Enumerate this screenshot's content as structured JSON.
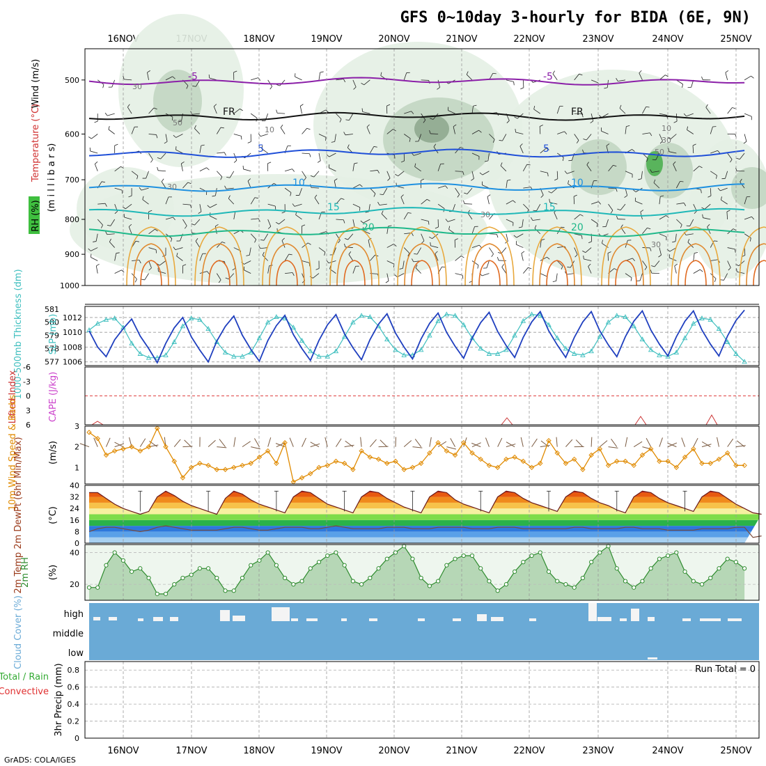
{
  "title": "GFS 0~10day 3-hourly for BIDA (6E, 9N)",
  "credit": "GrADS: COLA/IGES",
  "colors": {
    "rh_shade": "#e4f0e4",
    "rh_mid": "#c2d6c2",
    "rh_dark": "#8fa88f",
    "rh_high": "#4caf50",
    "slp": "#1f3fbf",
    "thickness": "#3fbfbf",
    "lifted_index": "#cc3333",
    "cape": "#cc44cc",
    "wind_speed": "#e08a00",
    "rh2m": "#2e8b2e",
    "cloud": "#6aaad6",
    "precip_label_rain": "#33aa33",
    "precip_label_conv": "#e03030"
  },
  "chart_data": [
    {
      "type": "line",
      "panel": "upper_air",
      "time_labels": [
        "16NOV",
        "17NOV",
        "18NOV",
        "19NOV",
        "20NOV",
        "21NOV",
        "22NOV",
        "23NOV",
        "24NOV",
        "25NOV"
      ],
      "ylabel": "(m i l l i b a r s)",
      "yticks": [
        "500",
        "600",
        "700",
        "800",
        "900",
        "1000"
      ],
      "ylim": [
        450,
        1000
      ],
      "y_scale": "log-pressure",
      "side_labels": [
        "Wind (m/s)",
        "Temperature (°C)",
        "RH (%)"
      ],
      "temperature_isotherms": [
        {
          "label": "-5",
          "color": "#8b1fa8",
          "p_start": 502,
          "amp": 4
        },
        {
          "label": "FR",
          "color": "#111111",
          "p_start": 565,
          "amp": 5
        },
        {
          "label": "5",
          "color": "#1f4fd8",
          "p_start": 640,
          "amp": 6
        },
        {
          "label": "10",
          "color": "#1e90e0",
          "p_start": 718,
          "amp": 6
        },
        {
          "label": "15",
          "color": "#1fb8b8",
          "p_start": 780,
          "amp": 7
        },
        {
          "label": "20",
          "color": "#1fb88a",
          "p_start": 835,
          "amp": 8
        }
      ],
      "isotherm_labels": [
        "-5",
        "-5",
        "FR",
        "FR",
        "5",
        "5",
        "10",
        "10",
        "15",
        "15",
        "15"
      ],
      "rh_labels": [
        "30",
        "50",
        "10",
        "30",
        "30",
        "10",
        "30",
        "50",
        "30"
      ]
    },
    {
      "type": "line",
      "panel": "slp_thickness",
      "left_axis_label": "1000-500mb Thickness (dm)",
      "right_axis_label": "SLP (mb)",
      "left_ticks": [
        "581",
        "580",
        "579",
        "578",
        "577"
      ],
      "right_ticks": [
        "1012",
        "1010",
        "1008",
        "1006"
      ],
      "slp_ylim": [
        1005.5,
        1013.5
      ],
      "series": [
        {
          "name": "SLP",
          "values": [
            1010.2,
            1008.0,
            1006.7,
            1009.0,
            1010.5,
            1011.8,
            1009.5,
            1007.8,
            1005.9,
            1008.5,
            1010.6,
            1012.0,
            1009.4,
            1007.6,
            1006.0,
            1008.8,
            1010.8,
            1012.2,
            1009.6,
            1007.7,
            1006.1,
            1008.9,
            1010.9,
            1012.3,
            1009.7,
            1007.8,
            1006.2,
            1008.9,
            1011.0,
            1012.4,
            1009.8,
            1007.9,
            1006.3,
            1009.0,
            1011.1,
            1012.5,
            1009.9,
            1008.0,
            1006.4,
            1009.1,
            1011.2,
            1012.6,
            1010.0,
            1008.1,
            1006.5,
            1009.2,
            1011.3,
            1012.7,
            1010.1,
            1008.2,
            1006.6,
            1009.3,
            1011.4,
            1012.8,
            1010.2,
            1008.3,
            1006.6,
            1009.3,
            1011.4,
            1012.8,
            1010.2,
            1008.3,
            1006.7,
            1009.4,
            1011.5,
            1012.9,
            1010.3,
            1008.4,
            1006.8,
            1009.4,
            1011.5,
            1012.9,
            1010.3,
            1008.4,
            1006.8,
            1009.5,
            1011.6,
            1013.0
          ]
        },
        {
          "name": "Thickness",
          "values": [
            579.4,
            579.9,
            580.2,
            580.3,
            579.6,
            578.4,
            577.6,
            577.3,
            577.3,
            577.5,
            578.5,
            579.7,
            580.3,
            580.2,
            579.5,
            578.5,
            577.7,
            577.4,
            577.4,
            577.7,
            578.8,
            580.0,
            580.4,
            580.3,
            579.6,
            578.6,
            577.8,
            577.4,
            577.4,
            577.8,
            578.9,
            580.0,
            580.5,
            580.4,
            579.7,
            578.7,
            577.9,
            577.5,
            577.5,
            577.9,
            579.0,
            580.1,
            580.6,
            580.5,
            579.8,
            578.8,
            578.0,
            577.6,
            577.6,
            577.9,
            579.0,
            580.1,
            580.6,
            580.5,
            579.8,
            578.8,
            578.0,
            577.6,
            577.5,
            577.8,
            578.9,
            580.0,
            580.5,
            580.4,
            579.7,
            578.7,
            577.9,
            577.5,
            577.4,
            577.7,
            578.8,
            579.9,
            580.3,
            580.2,
            579.5,
            578.5,
            577.6,
            577.0
          ]
        }
      ]
    },
    {
      "type": "line",
      "panel": "stability",
      "left_axis_label": "Lifted Index",
      "right_axis_label": "CAPE (J/kg)",
      "yticks": [
        "-6",
        "-3",
        "0",
        "3",
        "6"
      ],
      "zero_line": 0,
      "series": [
        {
          "name": "Lifted Index",
          "values": []
        },
        {
          "name": "CAPE",
          "values": [
            0,
            4,
            2,
            0,
            0,
            0,
            0,
            0,
            0,
            0,
            0,
            0,
            0,
            0,
            0,
            0,
            0,
            0,
            0,
            0,
            0,
            0,
            0,
            0,
            0,
            0,
            0,
            0,
            0,
            0,
            0,
            0,
            0,
            0,
            0,
            0,
            0,
            0,
            0,
            0,
            0,
            0,
            0,
            0,
            0,
            0,
            0,
            0,
            0,
            0,
            0,
            0,
            0,
            0,
            0,
            0,
            0,
            0,
            0,
            0,
            0,
            0,
            0,
            0,
            0,
            0,
            0,
            0,
            0,
            0,
            0,
            0,
            0,
            0,
            0,
            0,
            0,
            0
          ]
        }
      ]
    },
    {
      "type": "line",
      "panel": "wind10m",
      "left_axis_label": "10m Wind Speed & Barbs",
      "ylabel": "(m/s)",
      "yticks": [
        "3",
        "2",
        "1"
      ],
      "ylim": [
        0.2,
        3.0
      ],
      "series": [
        {
          "name": "10m Wind Speed",
          "values": [
            2.7,
            2.4,
            1.6,
            1.8,
            1.9,
            2.0,
            1.8,
            2.0,
            2.9,
            2.0,
            1.3,
            0.5,
            1.0,
            1.2,
            1.1,
            0.9,
            0.9,
            1.0,
            1.1,
            1.2,
            1.5,
            1.8,
            1.2,
            2.2,
            0.3,
            0.5,
            0.7,
            1.0,
            1.1,
            1.3,
            1.2,
            0.9,
            1.8,
            1.5,
            1.4,
            1.2,
            1.3,
            0.9,
            1.0,
            1.2,
            1.7,
            2.2,
            1.8,
            1.6,
            2.2,
            1.7,
            1.4,
            1.1,
            1.0,
            1.4,
            1.5,
            1.3,
            1.0,
            1.2,
            2.3,
            1.7,
            1.2,
            1.4,
            0.9,
            1.6,
            1.9,
            1.1,
            1.3,
            1.3,
            1.1,
            1.6,
            1.9,
            1.3,
            1.3,
            1.0,
            1.5,
            1.9,
            1.2,
            1.2,
            1.4,
            1.7,
            1.1,
            1.1
          ]
        }
      ]
    },
    {
      "type": "area",
      "panel": "temp2m",
      "left_axis_label": "2m Temp 2m DewPt (6hr Min/Max)",
      "ylabel": "(°C)",
      "yticks": [
        "40",
        "32",
        "24",
        "16",
        "8",
        "0"
      ],
      "ylim": [
        0,
        40
      ],
      "temperature_bands": [
        {
          "from": 0,
          "to": 4,
          "color": "#a8d0f0"
        },
        {
          "from": 4,
          "to": 8,
          "color": "#5aa0e8"
        },
        {
          "from": 8,
          "to": 12,
          "color": "#2e78dc"
        },
        {
          "from": 12,
          "to": 16,
          "color": "#2ab24a"
        },
        {
          "from": 16,
          "to": 20,
          "color": "#7ddc4a"
        },
        {
          "from": 20,
          "to": 24,
          "color": "#f6f0a0"
        },
        {
          "from": 24,
          "to": 28,
          "color": "#f7c24a"
        },
        {
          "from": 28,
          "to": 32,
          "color": "#f08a1c"
        },
        {
          "from": 32,
          "to": 35,
          "color": "#e85a10"
        },
        {
          "from": 35,
          "to": 40,
          "color": "#c81e0a"
        }
      ],
      "series": [
        {
          "name": "2m Temp",
          "values": [
            35,
            35,
            31,
            27,
            24,
            22,
            20,
            22,
            32,
            36,
            33,
            29,
            26,
            24,
            22,
            20,
            31,
            36,
            34,
            30,
            27,
            25,
            23,
            21,
            32,
            36,
            35,
            31,
            27,
            25,
            23,
            21,
            32,
            36,
            35,
            31,
            28,
            25,
            23,
            21,
            32,
            36,
            35,
            30,
            27,
            25,
            23,
            21,
            32,
            36,
            35,
            31,
            28,
            26,
            24,
            22,
            32,
            36,
            35,
            31,
            28,
            26,
            23,
            21,
            32,
            36,
            35,
            31,
            28,
            26,
            24,
            22,
            32,
            36,
            35,
            31,
            27,
            24,
            21,
            20
          ]
        },
        {
          "name": "2m DewPt",
          "values": [
            8,
            10,
            11,
            11,
            10,
            9,
            8,
            9,
            11,
            12,
            11,
            10,
            9,
            9,
            9,
            9,
            10,
            11,
            11,
            10,
            9,
            9,
            10,
            11,
            11,
            11,
            10,
            10,
            11,
            12,
            11,
            10,
            10,
            10,
            10,
            11,
            11,
            11,
            10,
            10,
            10,
            11,
            11,
            11,
            11,
            10,
            10,
            10,
            11,
            11,
            11,
            10,
            10,
            10,
            10,
            10,
            10,
            11,
            11,
            10,
            10,
            10,
            10,
            11,
            11,
            10,
            10,
            10,
            9,
            9,
            9,
            9,
            10,
            10,
            10,
            10,
            11,
            11,
            4,
            5
          ]
        }
      ]
    },
    {
      "type": "area",
      "panel": "rh2m",
      "left_axis_label": "2m RH",
      "ylabel": "(%)",
      "yticks": [
        "40",
        "20"
      ],
      "ylim": [
        10,
        45
      ],
      "series": [
        {
          "name": "2m RH",
          "values": [
            18,
            18,
            32,
            40,
            35,
            28,
            30,
            24,
            14,
            14,
            20,
            24,
            26,
            30,
            30,
            24,
            16,
            16,
            24,
            32,
            35,
            40,
            32,
            24,
            20,
            22,
            30,
            34,
            38,
            40,
            32,
            22,
            20,
            24,
            30,
            36,
            40,
            44,
            36,
            24,
            19,
            22,
            32,
            36,
            38,
            38,
            30,
            22,
            16,
            20,
            28,
            34,
            38,
            40,
            28,
            22,
            20,
            18,
            24,
            34,
            40,
            44,
            30,
            22,
            18,
            22,
            30,
            36,
            38,
            40,
            28,
            22,
            20,
            24,
            30,
            36,
            34,
            30
          ]
        }
      ]
    },
    {
      "type": "bar",
      "panel": "cloud",
      "left_axis_label": "Cloud Cover (%)",
      "levels": [
        "high",
        "middle",
        "low"
      ],
      "note": "high-level cloud gaps (white blocks) near 17NOV, 18NOV, 21NOV, 23NOV"
    },
    {
      "type": "bar",
      "panel": "precip",
      "left_axis_label": "3hr Precip (mm)",
      "legend_labels": [
        "Total / Rain",
        "Convective"
      ],
      "annotation": "Run Total = 0",
      "yticks": [
        "0.8",
        "0.6",
        "0.4",
        "0.2",
        "0"
      ],
      "ylim": [
        0,
        0.9
      ],
      "values": []
    }
  ]
}
